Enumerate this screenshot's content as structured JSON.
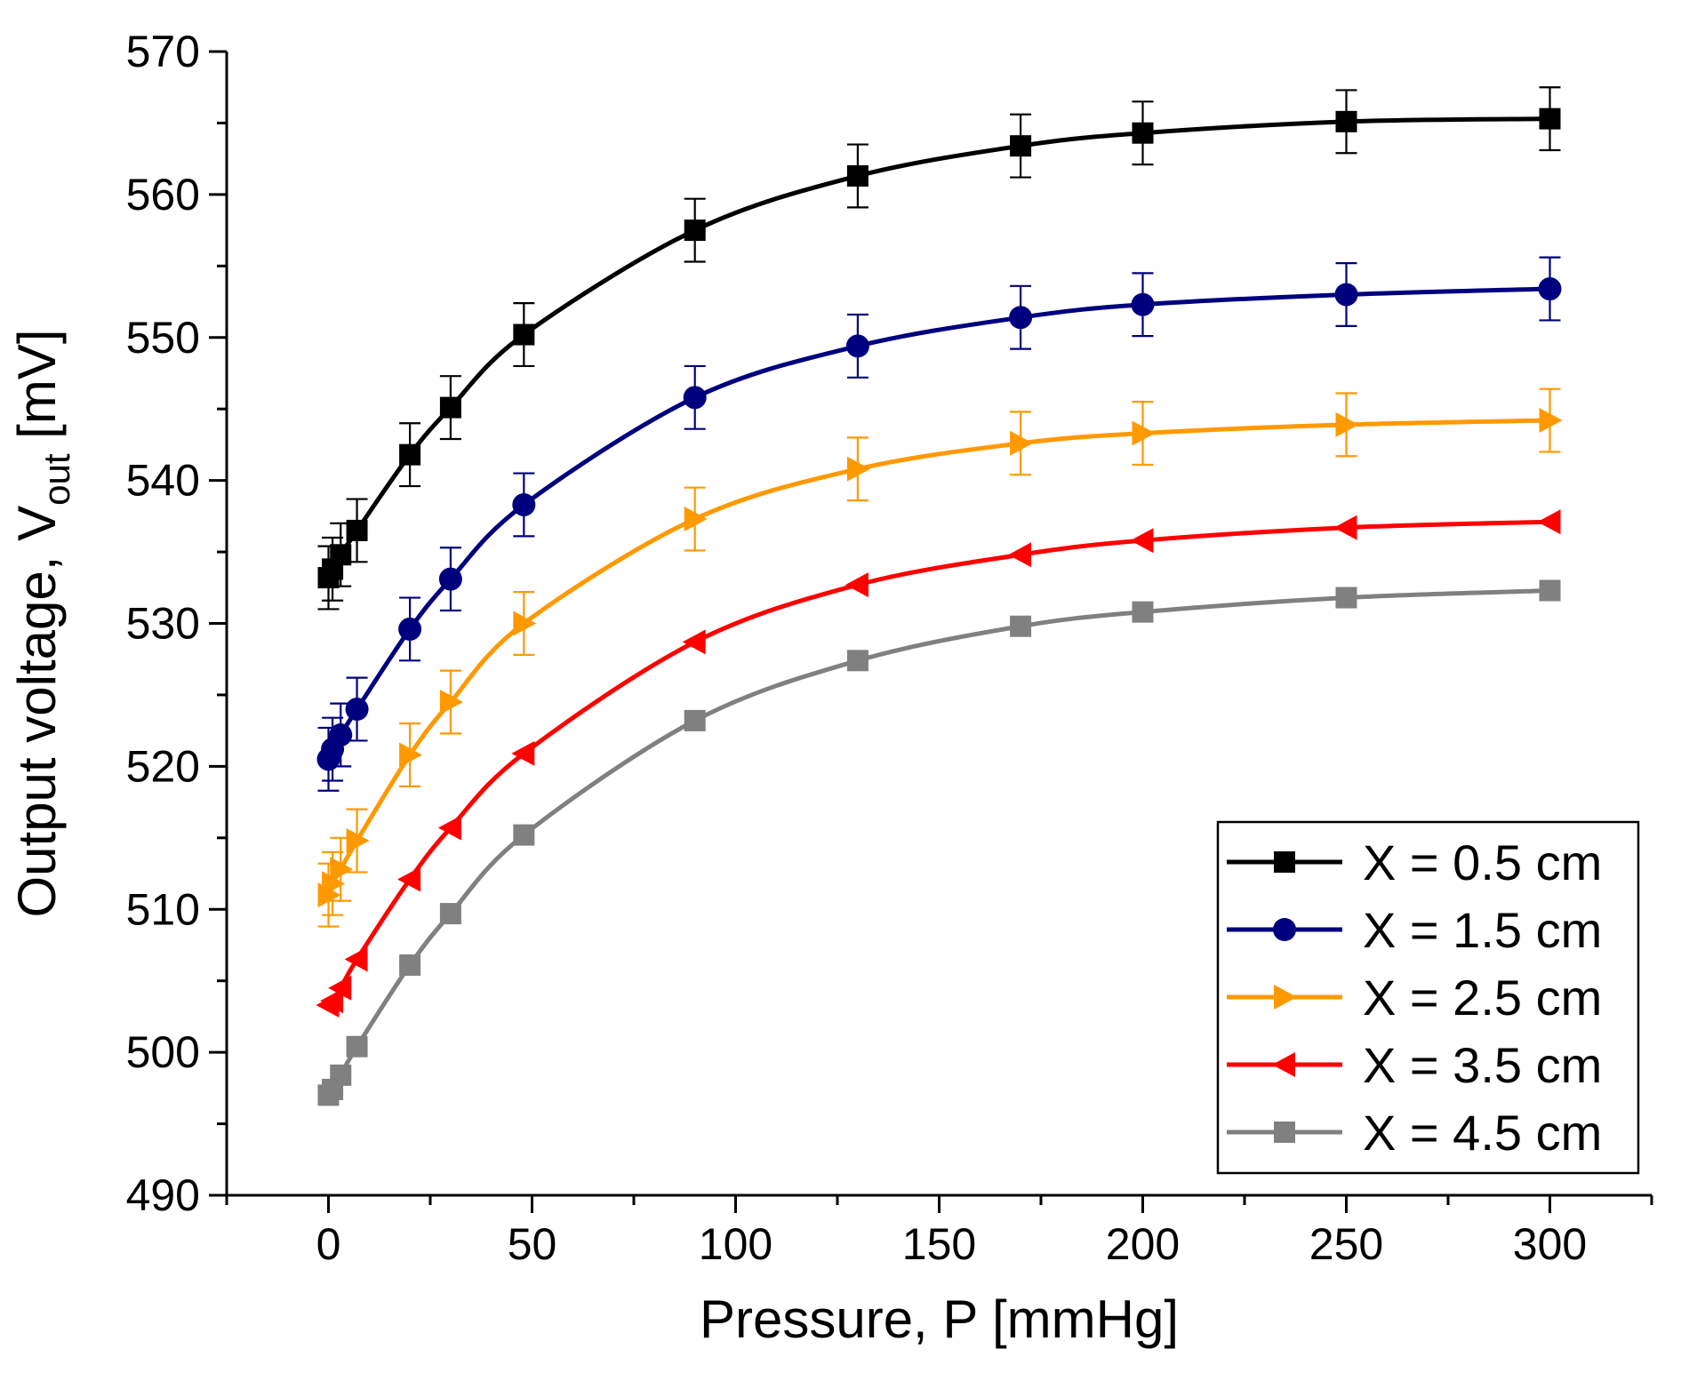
{
  "chart_data": {
    "type": "line",
    "title": "",
    "xlabel": "Pressure, P [mmHg]",
    "ylabel": {
      "main": "Output voltage, V",
      "sub": "out",
      "unit": " [mV]"
    },
    "xlim": [
      -25,
      325
    ],
    "ylim": [
      490,
      570
    ],
    "x_ticks": [
      0,
      50,
      100,
      150,
      200,
      250,
      300
    ],
    "x_minor_ticks": [
      -25,
      25,
      75,
      125,
      175,
      225,
      275,
      325
    ],
    "y_ticks": [
      490,
      500,
      510,
      520,
      530,
      540,
      550,
      560,
      570
    ],
    "y_minor_ticks": [
      495,
      505,
      515,
      525,
      535,
      545,
      555,
      565
    ],
    "x_tick_labels": [
      "0",
      "50",
      "100",
      "150",
      "200",
      "250",
      "300"
    ],
    "y_tick_labels": [
      "490",
      "500",
      "510",
      "520",
      "530",
      "540",
      "550",
      "560",
      "570"
    ],
    "grid": false,
    "legend_position": "bottom-right",
    "x": [
      0,
      1,
      3,
      7,
      20,
      30,
      48,
      90,
      130,
      170,
      200,
      250,
      300
    ],
    "series": [
      {
        "name": "X = 0.5 cm",
        "color": "#000000",
        "marker": "square",
        "values": [
          533.2,
          533.8,
          534.8,
          536.5,
          541.8,
          545.1,
          550.2,
          557.5,
          561.3,
          563.4,
          564.3,
          565.1,
          565.3
        ],
        "error": 2.2
      },
      {
        "name": "X = 1.5 cm",
        "color": "#00007f",
        "marker": "circle",
        "values": [
          520.5,
          521.2,
          522.2,
          524.0,
          529.6,
          533.1,
          538.3,
          545.8,
          549.4,
          551.4,
          552.3,
          553.0,
          553.4
        ],
        "error": 2.2
      },
      {
        "name": "X = 2.5 cm",
        "color": "#ff9900",
        "marker": "triangle-right",
        "values": [
          511.0,
          511.8,
          512.8,
          514.8,
          520.8,
          524.5,
          530.0,
          537.3,
          540.8,
          542.6,
          543.3,
          543.9,
          544.2
        ],
        "error": 2.2
      },
      {
        "name": "X = 3.5 cm",
        "color": "#ff0000",
        "marker": "triangle-left",
        "values": [
          503.3,
          503.6,
          504.5,
          506.5,
          512.1,
          515.7,
          520.9,
          528.7,
          532.7,
          534.8,
          535.8,
          536.7,
          537.1
        ]
      },
      {
        "name": "X = 4.5 cm",
        "color": "#808080",
        "marker": "square",
        "values": [
          497.0,
          497.4,
          498.4,
          500.4,
          506.1,
          509.7,
          515.2,
          523.2,
          527.4,
          529.8,
          530.8,
          531.8,
          532.3
        ]
      }
    ]
  }
}
